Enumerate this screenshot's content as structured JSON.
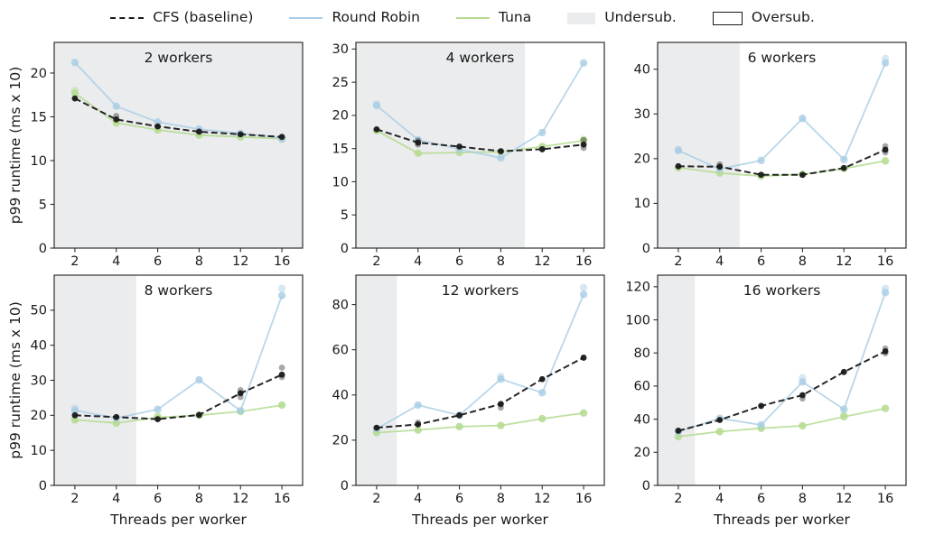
{
  "legend": {
    "items": [
      {
        "label": "CFS (baseline)",
        "swatch": "dashed-line",
        "color": "#1a1a1a"
      },
      {
        "label": "Round Robin",
        "swatch": "line",
        "color": "#a8cde4"
      },
      {
        "label": "Tuna",
        "swatch": "line",
        "color": "#b5dc92"
      },
      {
        "label": "Undersub.",
        "swatch": "filled-box",
        "color": "#ebecee"
      },
      {
        "label": "Oversub.",
        "swatch": "outlined-box",
        "color": "#ffffff"
      }
    ]
  },
  "chart_data": {
    "type": "line",
    "x_categories": [
      2,
      4,
      6,
      8,
      12,
      16
    ],
    "xlabel": "Threads per worker",
    "ylabel": "p99 runtime (ms x 10)",
    "legend_position": "top",
    "grid": false,
    "series_names": [
      "CFS (baseline)",
      "Round Robin",
      "Tuna"
    ],
    "colors": {
      "cfs": "#1a1a1a",
      "round_robin": "#a8cde4",
      "tuna": "#b5dc92",
      "undersub_fill": "#ebecee",
      "spine": "#2e2e2e"
    },
    "subplots": [
      {
        "title": "2 workers",
        "yticks": [
          0,
          5,
          10,
          15,
          20
        ],
        "ymax": 23.5,
        "undersub_frac": 1.0,
        "series": {
          "cfs": [
            17.1,
            14.7,
            13.9,
            13.3,
            13.0,
            12.7
          ],
          "round_robin": [
            21.2,
            16.2,
            14.4,
            13.6,
            13.1,
            12.6
          ],
          "tuna": [
            17.7,
            14.3,
            13.5,
            12.9,
            12.7,
            12.5
          ]
        },
        "extras": [
          {
            "s": "tuna",
            "i": 0,
            "v": 18.0
          },
          {
            "s": "cfs",
            "i": 1,
            "v": 15.1
          },
          {
            "s": "round_robin",
            "i": 5,
            "v": 12.4
          }
        ]
      },
      {
        "title": "4 workers",
        "yticks": [
          0,
          5,
          10,
          15,
          20,
          25,
          30
        ],
        "ymax": 31,
        "undersub_frac": 0.68,
        "series": {
          "cfs": [
            17.9,
            15.9,
            15.3,
            14.6,
            14.9,
            15.6
          ],
          "round_robin": [
            21.5,
            16.3,
            14.9,
            13.6,
            17.4,
            27.9
          ],
          "tuna": [
            17.7,
            14.3,
            14.4,
            14.5,
            15.3,
            16.2
          ]
        },
        "extras": [
          {
            "s": "cfs",
            "i": 1,
            "v": 15.6
          },
          {
            "s": "cfs",
            "i": 1,
            "v": 16.2
          },
          {
            "s": "cfs",
            "i": 5,
            "v": 16.3
          },
          {
            "s": "cfs",
            "i": 5,
            "v": 15.1
          },
          {
            "s": "tuna",
            "i": 5,
            "v": 16.4
          },
          {
            "s": "round_robin",
            "i": 0,
            "v": 21.7
          }
        ]
      },
      {
        "title": "6 workers",
        "yticks": [
          0,
          10,
          20,
          30,
          40
        ],
        "ymax": 46,
        "undersub_frac": 0.33,
        "series": {
          "cfs": [
            18.3,
            18.2,
            16.4,
            16.4,
            17.9,
            22.0
          ],
          "round_robin": [
            21.8,
            17.7,
            19.6,
            29.0,
            19.8,
            41.4
          ],
          "tuna": [
            18.0,
            16.8,
            16.1,
            16.5,
            17.8,
            19.5
          ]
        },
        "extras": [
          {
            "s": "cfs",
            "i": 1,
            "v": 18.7
          },
          {
            "s": "cfs",
            "i": 5,
            "v": 22.8
          },
          {
            "s": "cfs",
            "i": 5,
            "v": 21.4
          },
          {
            "s": "round_robin",
            "i": 5,
            "v": 42.4
          },
          {
            "s": "round_robin",
            "i": 0,
            "v": 22.1
          }
        ]
      },
      {
        "title": "8 workers",
        "yticks": [
          0,
          10,
          20,
          30,
          40,
          50
        ],
        "ymax": 60,
        "undersub_frac": 0.33,
        "series": {
          "cfs": [
            20.0,
            19.5,
            18.9,
            20.1,
            26.3,
            31.6
          ],
          "round_robin": [
            21.4,
            19.2,
            21.7,
            30.1,
            21.3,
            54.2
          ],
          "tuna": [
            18.7,
            17.8,
            19.4,
            20.0,
            21.1,
            22.9
          ]
        },
        "extras": [
          {
            "s": "cfs",
            "i": 4,
            "v": 25.2
          },
          {
            "s": "cfs",
            "i": 4,
            "v": 27.2
          },
          {
            "s": "cfs",
            "i": 5,
            "v": 33.6
          },
          {
            "s": "cfs",
            "i": 5,
            "v": 30.9
          },
          {
            "s": "round_robin",
            "i": 5,
            "v": 56.2
          },
          {
            "s": "round_robin",
            "i": 0,
            "v": 22.0
          },
          {
            "s": "tuna",
            "i": 2,
            "v": 19.9
          }
        ]
      },
      {
        "title": "12 workers",
        "yticks": [
          0,
          20,
          40,
          60,
          80
        ],
        "ymax": 93,
        "undersub_frac": 0.165,
        "series": {
          "cfs": [
            25.5,
            27.0,
            31.0,
            36.0,
            47.0,
            56.5
          ],
          "round_robin": [
            25.0,
            35.5,
            31.0,
            47.0,
            41.0,
            84.5
          ],
          "tuna": [
            23.3,
            24.5,
            26.0,
            26.5,
            29.5,
            32.0
          ]
        },
        "extras": [
          {
            "s": "round_robin",
            "i": 5,
            "v": 87.5
          },
          {
            "s": "cfs",
            "i": 3,
            "v": 34.4
          },
          {
            "s": "round_robin",
            "i": 3,
            "v": 48.2
          },
          {
            "s": "cfs",
            "i": 1,
            "v": 27.8
          }
        ]
      },
      {
        "title": "16 workers",
        "yticks": [
          0,
          20,
          40,
          60,
          80,
          100,
          120
        ],
        "ymax": 127,
        "undersub_frac": 0.15,
        "series": {
          "cfs": [
            33.0,
            39.5,
            48.0,
            54.5,
            68.5,
            81.0
          ],
          "round_robin": [
            32.5,
            40.5,
            36.5,
            62.5,
            46.0,
            116.5
          ],
          "tuna": [
            29.5,
            32.5,
            34.5,
            36.0,
            41.5,
            46.5
          ]
        },
        "extras": [
          {
            "s": "round_robin",
            "i": 5,
            "v": 119.0
          },
          {
            "s": "round_robin",
            "i": 3,
            "v": 65.0
          },
          {
            "s": "cfs",
            "i": 3,
            "v": 52.5
          },
          {
            "s": "cfs",
            "i": 5,
            "v": 82.7
          },
          {
            "s": "cfs",
            "i": 5,
            "v": 79.8
          },
          {
            "s": "tuna",
            "i": 4,
            "v": 42.8
          }
        ]
      }
    ]
  }
}
